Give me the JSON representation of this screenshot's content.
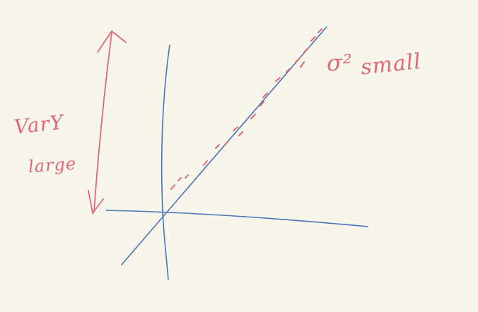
{
  "labels": {
    "var_y": "VarY",
    "large": "large",
    "sigma_sq": "σ²",
    "small": "small"
  },
  "colors": {
    "background": "#f8f6ec",
    "axis": "#4a72b8",
    "annotation": "#e06a74"
  }
}
